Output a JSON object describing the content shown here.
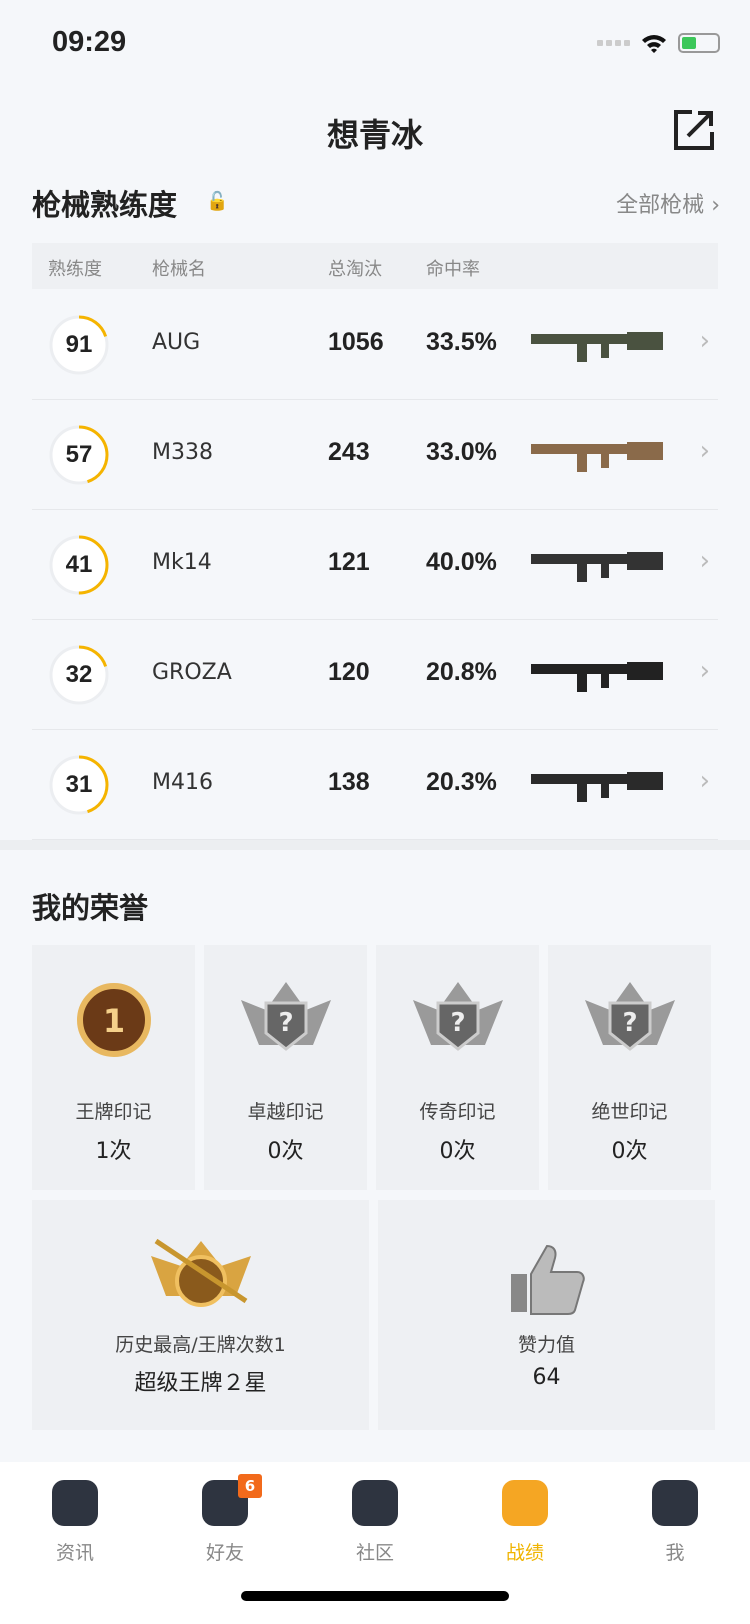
{
  "status": {
    "time": "09:29"
  },
  "header": {
    "title": "想青冰",
    "share_icon": "share-icon"
  },
  "weapons": {
    "title": "枪械熟练度",
    "all_link": "全部枪械",
    "columns": [
      "熟练度",
      "枪械名",
      "总淘汰",
      "命中率"
    ],
    "accent": "#f5b400",
    "rows": [
      {
        "mastery": "91",
        "name": "AUG",
        "kills": "1056",
        "hit": "33.5%",
        "progress": 0.2
      },
      {
        "mastery": "57",
        "name": "M338",
        "kills": "243",
        "hit": "33.0%",
        "progress": 0.45
      },
      {
        "mastery": "41",
        "name": "Mk14",
        "kills": "121",
        "hit": "40.0%",
        "progress": 0.5
      },
      {
        "mastery": "32",
        "name": "GROZA",
        "kills": "120",
        "hit": "20.8%",
        "progress": 0.2
      },
      {
        "mastery": "31",
        "name": "M416",
        "kills": "138",
        "hit": "20.3%",
        "progress": 0.45
      }
    ]
  },
  "honor": {
    "title": "我的荣誉",
    "badges": [
      {
        "label": "王牌印记",
        "count": "1次"
      },
      {
        "label": "卓越印记",
        "count": "0次"
      },
      {
        "label": "传奇印记",
        "count": "0次"
      },
      {
        "label": "绝世印记",
        "count": "0次"
      }
    ],
    "highest": {
      "label": "历史最高/王牌次数1",
      "value": "超级王牌２星"
    },
    "likes": {
      "label": "赞力值",
      "value": "64"
    }
  },
  "tabs": [
    {
      "label": "资讯"
    },
    {
      "label": "好友",
      "badge": "6"
    },
    {
      "label": "社区"
    },
    {
      "label": "战绩",
      "active": true
    },
    {
      "label": "我"
    }
  ]
}
